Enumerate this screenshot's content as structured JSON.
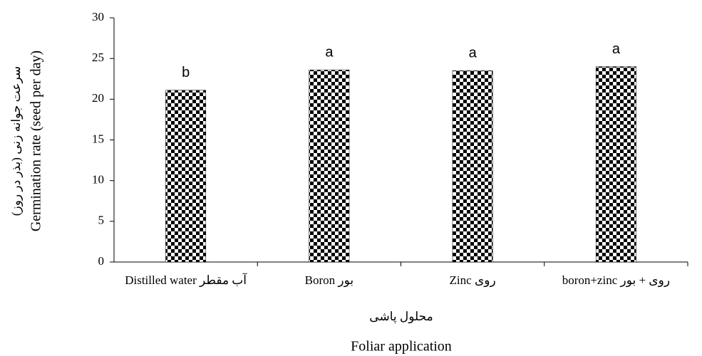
{
  "chart_data": {
    "type": "bar",
    "categories": [
      "Distilled water آب مقطر",
      "Boron بور",
      "Zinc روی",
      "boron+zinc روی + بور"
    ],
    "values": [
      21.1,
      23.6,
      23.5,
      24.0
    ],
    "significance_letters": [
      "b",
      "a",
      "a",
      "a"
    ],
    "ylabel": [
      "سرعت جوانه زنی (بذر در روز)",
      "Germination rate (seed per day)"
    ],
    "xlabel": [
      "محلول پاشی",
      "Foliar application"
    ],
    "color": "#000000",
    "ylim": [
      0,
      30
    ],
    "yticks": [
      0,
      5,
      10,
      15,
      20,
      25,
      30
    ],
    "grid": false
  }
}
